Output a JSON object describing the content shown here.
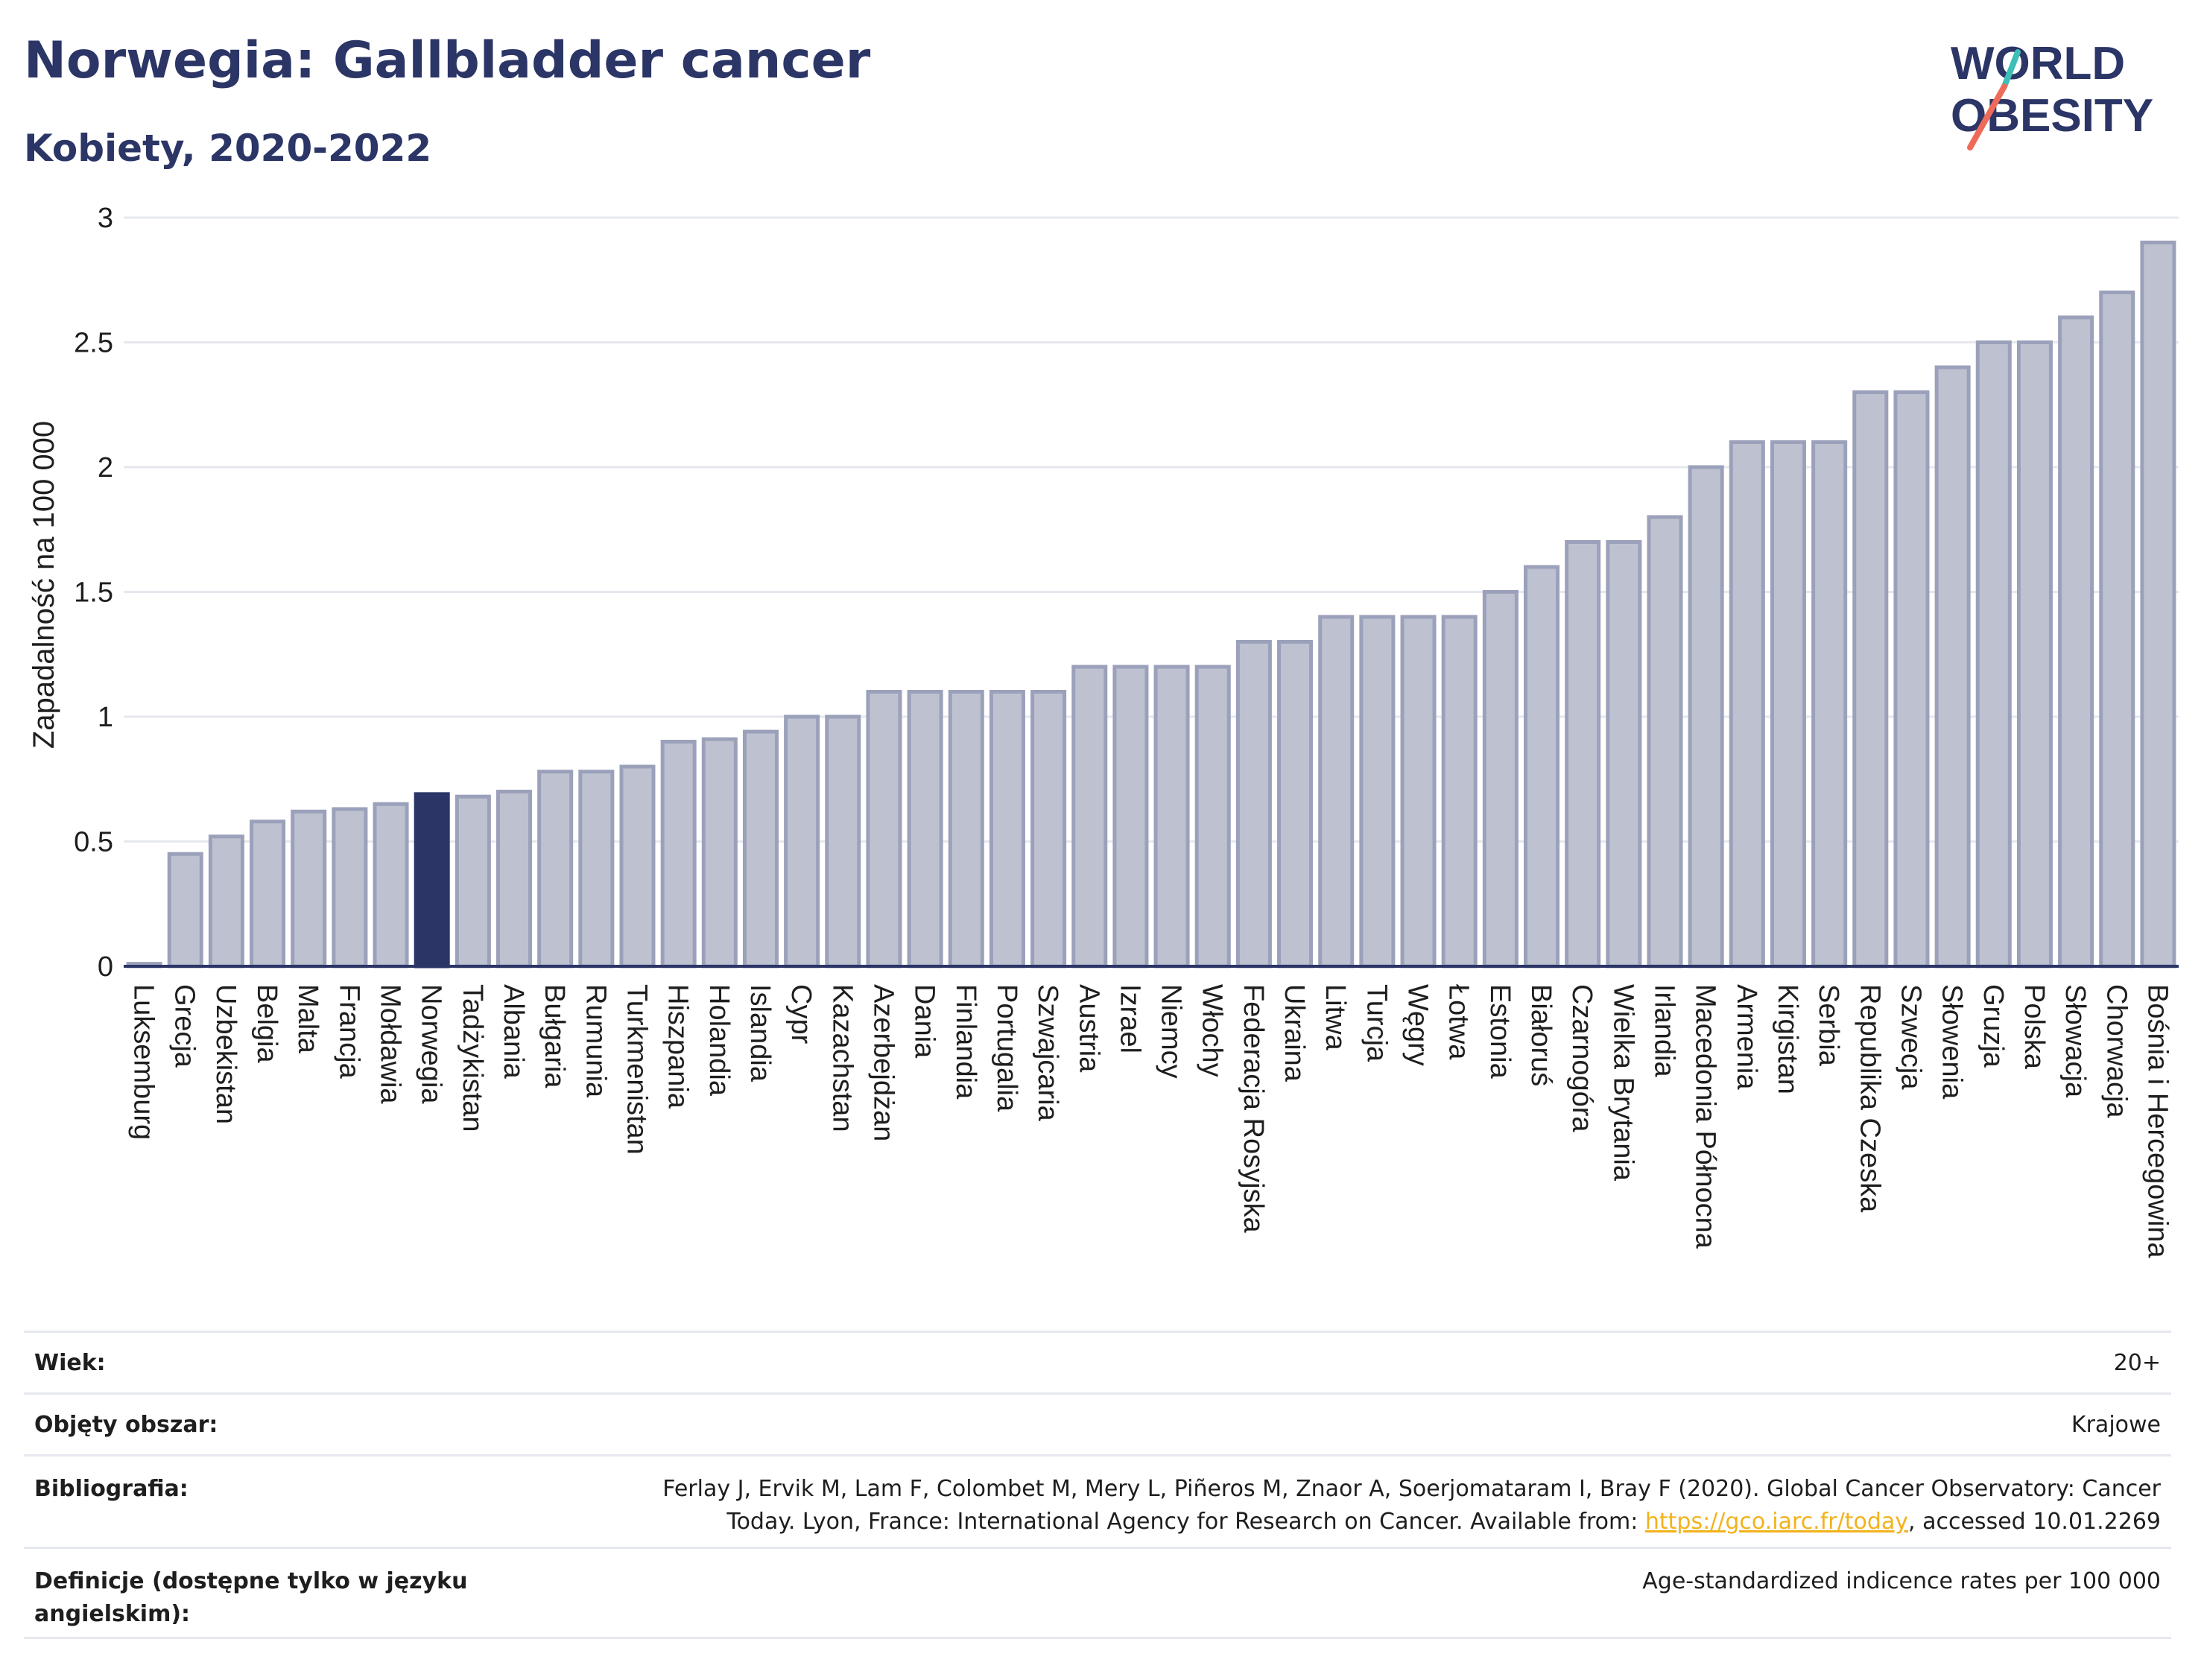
{
  "title": "Norwegia: Gallbladder cancer",
  "subtitle": "Kobiety, 2020-2022",
  "logo": {
    "line1": "WORLD",
    "line2": "OBESITY"
  },
  "colors": {
    "bar": "#bec2d0",
    "bar_edge": "#9ba1ba",
    "highlight": "#2b3566",
    "grid": "#e6e8ef",
    "axis": "#2b3566",
    "text": "#1e1e1e",
    "link": "#f2b21b"
  },
  "chart_data": {
    "type": "bar",
    "ylabel": "Zapadalność na 100 000",
    "ylim": [
      0,
      3
    ],
    "yticks": [
      0,
      0.5,
      1,
      1.5,
      2,
      2.5,
      3
    ],
    "highlight": "Norwegia",
    "categories": [
      "Luksemburg",
      "Grecja",
      "Uzbekistan",
      "Belgia",
      "Malta",
      "Francja",
      "Mołdawia",
      "Norwegia",
      "Tadżykistan",
      "Albania",
      "Bułgaria",
      "Rumunia",
      "Turkmenistan",
      "Hiszpania",
      "Holandia",
      "Islandia",
      "Cypr",
      "Kazachstan",
      "Azerbejdżan",
      "Dania",
      "Finlandia",
      "Portugalia",
      "Szwajcaria",
      "Austria",
      "Izrael",
      "Niemcy",
      "Włochy",
      "Federacja Rosyjska",
      "Ukraina",
      "Litwa",
      "Turcja",
      "Węgry",
      "Łotwa",
      "Estonia",
      "Białoruś",
      "Czarnogóra",
      "Wielka Brytania",
      "Irlandia",
      "Macedonia Północna",
      "Armenia",
      "Kirgistan",
      "Serbia",
      "Republika Czeska",
      "Szwecja",
      "Słowenia",
      "Gruzja",
      "Polska",
      "Słowacja",
      "Chorwacja",
      "Bośnia i Hercegowina"
    ],
    "values": [
      0.01,
      0.45,
      0.52,
      0.58,
      0.62,
      0.63,
      0.65,
      0.69,
      0.68,
      0.7,
      0.78,
      0.78,
      0.8,
      0.9,
      0.91,
      0.94,
      1.0,
      1.0,
      1.1,
      1.1,
      1.1,
      1.1,
      1.1,
      1.2,
      1.2,
      1.2,
      1.2,
      1.3,
      1.3,
      1.4,
      1.4,
      1.4,
      1.4,
      1.5,
      1.6,
      1.7,
      1.7,
      1.8,
      2.0,
      2.1,
      2.1,
      2.1,
      2.3,
      2.3,
      2.4,
      2.5,
      2.5,
      2.6,
      2.7,
      2.9
    ]
  },
  "meta": {
    "age_label": "Wiek:",
    "age_value": "20+",
    "area_label": "Objęty obszar:",
    "area_value": "Krajowe",
    "bib_label": "Bibliografia:",
    "bib_text_1": "Ferlay J, Ervik M, Lam F, Colombet M, Mery L, Piñeros M, Znaor A, Soerjomataram I, Bray F (2020). Global Cancer Observatory: Cancer",
    "bib_text_2": "Today. Lyon, France: International Agency for Research on Cancer. Available from: ",
    "bib_link": "https://gco.iarc.fr/today",
    "bib_text_3": ", accessed 10.01.2269",
    "def_label_1": "Definicje (dostępne tylko w języku",
    "def_label_2": "angielskim):",
    "def_value": "Age-standardized indicence rates per 100 000"
  }
}
